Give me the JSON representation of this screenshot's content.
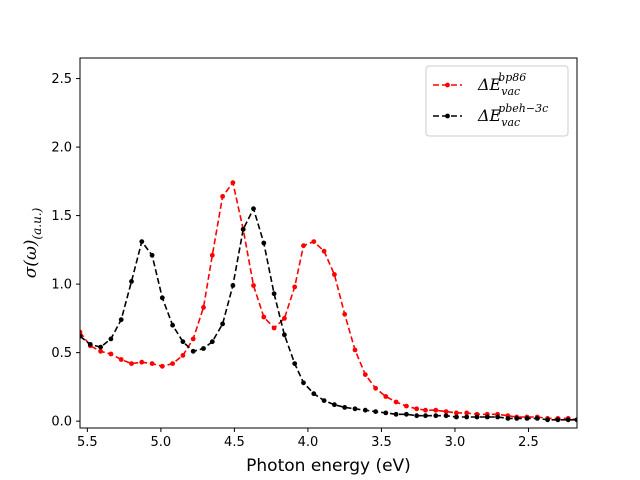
{
  "chart_data": {
    "type": "line",
    "xlabel": "Photon energy (eV)",
    "ylabel_main": "σ(ω)",
    "ylabel_sub": "(a.u.)",
    "xlim": [
      5.55,
      2.17
    ],
    "ylim": [
      -0.05,
      2.65
    ],
    "x_inverted": true,
    "xticks": [
      5.5,
      5.0,
      4.5,
      4.0,
      3.5,
      3.0,
      2.5
    ],
    "xtick_labels": [
      "5.5",
      "5.0",
      "4.5",
      "4.0",
      "3.5",
      "3.0",
      "2.5"
    ],
    "yticks": [
      0.0,
      0.5,
      1.0,
      1.5,
      2.0,
      2.5
    ],
    "ytick_labels": [
      "0.0",
      "0.5",
      "1.0",
      "1.5",
      "2.0",
      "2.5"
    ],
    "grid": false,
    "legend_position": "top-right",
    "series": [
      {
        "label_main": "ΔE",
        "label_sub": "vac",
        "label_sup": "bp86",
        "color": "#ff0000",
        "line_style": "dashed",
        "marker": "circle",
        "x": [
          5.55,
          5.48,
          5.41,
          5.34,
          5.27,
          5.2,
          5.13,
          5.06,
          4.99,
          4.92,
          4.85,
          4.78,
          4.71,
          4.65,
          4.58,
          4.51,
          4.44,
          4.37,
          4.3,
          4.23,
          4.16,
          4.09,
          4.03,
          3.96,
          3.89,
          3.82,
          3.75,
          3.68,
          3.61,
          3.54,
          3.47,
          3.4,
          3.33,
          3.26,
          3.2,
          3.13,
          3.06,
          2.99,
          2.92,
          2.85,
          2.78,
          2.71,
          2.64,
          2.58,
          2.51,
          2.44,
          2.37,
          2.3,
          2.23,
          2.17
        ],
        "y": [
          0.65,
          0.55,
          0.51,
          0.49,
          0.45,
          0.42,
          0.43,
          0.42,
          0.4,
          0.42,
          0.48,
          0.6,
          0.83,
          1.21,
          1.64,
          1.74,
          1.4,
          0.99,
          0.76,
          0.68,
          0.75,
          0.98,
          1.28,
          1.31,
          1.24,
          1.07,
          0.78,
          0.52,
          0.34,
          0.24,
          0.18,
          0.14,
          0.11,
          0.09,
          0.08,
          0.08,
          0.07,
          0.06,
          0.06,
          0.05,
          0.05,
          0.05,
          0.04,
          0.03,
          0.03,
          0.03,
          0.02,
          0.02,
          0.02,
          0.01
        ]
      },
      {
        "label_main": "ΔE",
        "label_sub": "vac",
        "label_sup": "pbeh−3c",
        "color": "#000000",
        "line_style": "dashed",
        "marker": "circle",
        "x": [
          5.55,
          5.48,
          5.41,
          5.34,
          5.27,
          5.2,
          5.13,
          5.06,
          4.99,
          4.92,
          4.85,
          4.78,
          4.71,
          4.65,
          4.58,
          4.51,
          4.44,
          4.37,
          4.3,
          4.23,
          4.16,
          4.09,
          4.03,
          3.96,
          3.89,
          3.82,
          3.75,
          3.68,
          3.61,
          3.54,
          3.47,
          3.4,
          3.33,
          3.26,
          3.2,
          3.13,
          3.06,
          2.99,
          2.92,
          2.85,
          2.78,
          2.71,
          2.64,
          2.58,
          2.51,
          2.44,
          2.37,
          2.3,
          2.23,
          2.17
        ],
        "y": [
          0.62,
          0.56,
          0.54,
          0.6,
          0.74,
          1.02,
          1.31,
          1.21,
          0.9,
          0.7,
          0.58,
          0.51,
          0.53,
          0.58,
          0.71,
          0.99,
          1.4,
          1.55,
          1.3,
          0.93,
          0.63,
          0.42,
          0.28,
          0.2,
          0.15,
          0.12,
          0.1,
          0.09,
          0.08,
          0.07,
          0.06,
          0.05,
          0.05,
          0.04,
          0.04,
          0.04,
          0.04,
          0.03,
          0.03,
          0.03,
          0.03,
          0.03,
          0.02,
          0.02,
          0.02,
          0.02,
          0.01,
          0.01,
          0.01,
          0.01
        ]
      }
    ]
  }
}
